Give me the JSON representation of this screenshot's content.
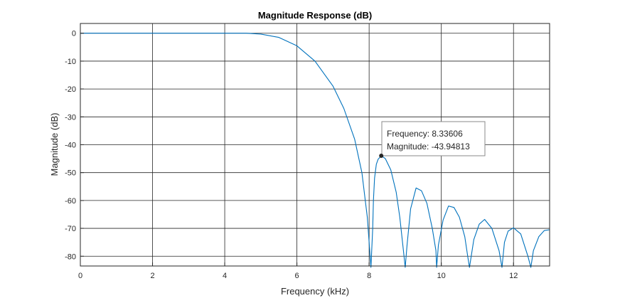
{
  "chart_data": {
    "type": "line",
    "title": "Magnitude Response (dB)",
    "xlabel": "Frequency (kHz)",
    "ylabel": "Magnitude (dB)",
    "xlim": [
      0,
      13
    ],
    "ylim": [
      -83.5,
      3.5
    ],
    "grid": true,
    "x_ticks": [
      {
        "value": 0,
        "label": "0"
      },
      {
        "value": 2,
        "label": "2"
      },
      {
        "value": 4,
        "label": "4"
      },
      {
        "value": 6,
        "label": "6"
      },
      {
        "value": 8,
        "label": "8"
      },
      {
        "value": 10,
        "label": "10"
      },
      {
        "value": 12,
        "label": "12"
      }
    ],
    "y_ticks": [
      {
        "value": 0,
        "label": "0"
      },
      {
        "value": -10,
        "label": "-10"
      },
      {
        "value": -20,
        "label": "-20"
      },
      {
        "value": -30,
        "label": "-30"
      },
      {
        "value": -40,
        "label": "-40"
      },
      {
        "value": -50,
        "label": "-50"
      },
      {
        "value": -60,
        "label": "-60"
      },
      {
        "value": -70,
        "label": "-70"
      },
      {
        "value": -80,
        "label": "-80"
      }
    ],
    "series": [
      {
        "color": "#0072bd",
        "x": [
          0,
          4.6,
          5.0,
          5.5,
          6.0,
          6.5,
          7.0,
          7.3,
          7.6,
          7.8,
          7.95,
          8.05,
          8.1,
          8.12,
          8.15,
          8.2,
          8.25,
          8.34,
          8.45,
          8.6,
          8.75,
          8.85,
          8.95,
          9.0,
          9.05,
          9.15,
          9.3,
          9.45,
          9.6,
          9.75,
          9.85,
          9.87,
          9.92,
          10.05,
          10.2,
          10.35,
          10.5,
          10.65,
          10.73,
          10.78,
          10.9,
          11.05,
          11.2,
          11.4,
          11.6,
          11.68,
          11.75,
          11.85,
          12.0,
          12.2,
          12.4,
          12.48,
          12.55,
          12.7,
          12.85,
          13.0
        ],
        "y": [
          0,
          0,
          -0.3,
          -1.5,
          -4.5,
          -10,
          -19,
          -27,
          -38,
          -50,
          -66,
          -84,
          -70,
          -60,
          -52,
          -47,
          -45.2,
          -43.94813,
          -45,
          -49,
          -57,
          -66,
          -78,
          -84,
          -76,
          -63,
          -55.5,
          -56.5,
          -61,
          -70,
          -78,
          -84,
          -76,
          -67,
          -62,
          -62.5,
          -66,
          -73,
          -80,
          -84,
          -74,
          -68.5,
          -66.8,
          -70,
          -78,
          -84,
          -75,
          -71,
          -69.8,
          -72,
          -80,
          -84,
          -78,
          -73,
          -70.8,
          -70.5
        ]
      }
    ],
    "datatip": {
      "x": 8.33606,
      "y": -43.94813,
      "lines": [
        "Frequency: 8.33606",
        "Magnitude: -43.94813"
      ]
    }
  }
}
